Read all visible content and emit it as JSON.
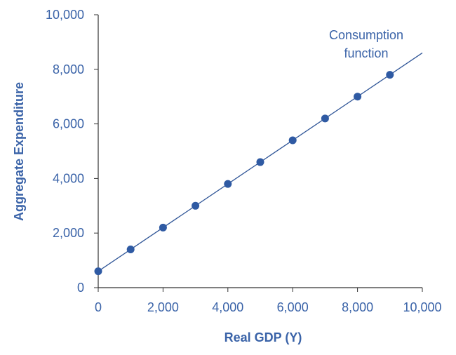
{
  "chart_data": {
    "type": "line",
    "title": "",
    "xlabel": "Real GDP (Y)",
    "ylabel": "Aggregate Expenditure",
    "xlim": [
      0,
      10000
    ],
    "ylim": [
      0,
      10000
    ],
    "x_ticks": [
      "0",
      "2,000",
      "4,000",
      "6,000",
      "8,000",
      "10,000"
    ],
    "y_ticks": [
      "0",
      "2,000",
      "4,000",
      "6,000",
      "8,000",
      "10,000"
    ],
    "grid": false,
    "annotation": [
      "Consumption",
      "function"
    ],
    "series": [
      {
        "x": [
          0,
          1000,
          2000,
          3000,
          4000,
          5000,
          6000,
          7000,
          8000,
          9000
        ],
        "y": [
          600,
          1400,
          2200,
          3000,
          3800,
          4600,
          5400,
          6200,
          7000,
          7800
        ]
      }
    ],
    "line": {
      "x": [
        0,
        10000
      ],
      "y": [
        600,
        8600
      ]
    },
    "colors": {
      "text": "#3a63a8",
      "line": "#2f5597",
      "marker": "#2f5aa3",
      "axis": "#333333"
    }
  }
}
